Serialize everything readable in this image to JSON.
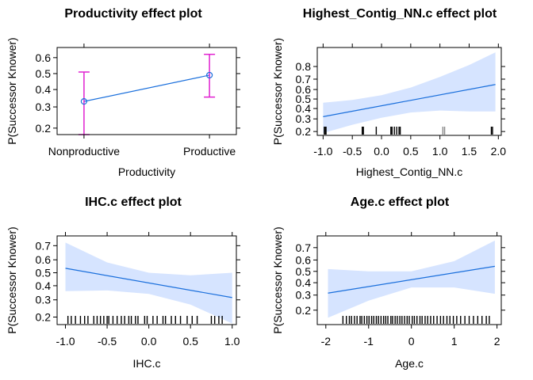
{
  "chart_data": [
    {
      "type": "line",
      "title": "Productivity effect plot",
      "xlabel": "Productivity",
      "ylabel": "P(Successor Knower)",
      "categories": [
        "Nonproductive",
        "Productive"
      ],
      "x_ticks": [
        "Nonproductive",
        "Productive"
      ],
      "y_ticks": [
        "0.2",
        "0.3",
        "0.4",
        "0.5",
        "0.6"
      ],
      "y_scale": "logit",
      "series": [
        {
          "values": [
            0.33,
            0.49
          ],
          "lower": [
            0.175,
            0.355
          ],
          "upper": [
            0.51,
            0.62
          ]
        }
      ],
      "line_color": "#1a6fdc",
      "errorbar_color": "#e020d0",
      "grid": false
    },
    {
      "type": "line",
      "title": "Highest_Contig_NN.c effect plot",
      "xlabel": "Highest_Contig_NN.c",
      "ylabel": "P(Successor Knower)",
      "xlim": [
        -1.1,
        2.05
      ],
      "x_ticks": [
        "-1.0",
        "-0.5",
        "0.0",
        "0.5",
        "1.0",
        "1.5",
        "2.0"
      ],
      "y_ticks": [
        "0.2",
        "0.3",
        "0.4",
        "0.5",
        "0.6",
        "0.7",
        "0.8"
      ],
      "y_scale": "logit",
      "line": {
        "x": [
          -1.0,
          1.95
        ],
        "y": [
          0.32,
          0.65
        ]
      },
      "band": {
        "x": [
          -1.0,
          -0.5,
          0.0,
          0.5,
          1.0,
          1.5,
          1.95
        ],
        "lower": [
          0.19,
          0.25,
          0.31,
          0.36,
          0.38,
          0.37,
          0.37
        ],
        "upper": [
          0.46,
          0.49,
          0.54,
          0.62,
          0.72,
          0.81,
          0.88
        ]
      },
      "rug": [
        -0.98,
        -0.96,
        -0.95,
        -0.33,
        -0.31,
        -0.09,
        0.16,
        0.18,
        0.22,
        0.26,
        0.3,
        0.32,
        1.05,
        1.08,
        1.88,
        1.9
      ],
      "rug_colors": {
        "1.05": "#888888",
        "1.08": "#888888"
      },
      "line_color": "#1a6fdc",
      "band_color": "#d6e4ff",
      "grid": false
    },
    {
      "type": "line",
      "title": "IHC.c effect plot",
      "xlabel": "IHC.c",
      "ylabel": "P(Successor Knower)",
      "xlim": [
        -1.1,
        1.05
      ],
      "x_ticks": [
        "-1.0",
        "-0.5",
        "0.0",
        "0.5",
        "1.0"
      ],
      "y_ticks": [
        "0.2",
        "0.3",
        "0.4",
        "0.5",
        "0.6",
        "0.7"
      ],
      "y_scale": "logit",
      "line": {
        "x": [
          -1.0,
          1.0
        ],
        "y": [
          0.535,
          0.315
        ]
      },
      "band": {
        "x": [
          -1.0,
          -0.5,
          0.0,
          0.5,
          1.0
        ],
        "lower": [
          0.36,
          0.365,
          0.34,
          0.27,
          0.17
        ],
        "upper": [
          0.72,
          0.58,
          0.5,
          0.48,
          0.5
        ]
      },
      "rug": [
        -0.97,
        -0.93,
        -0.88,
        -0.82,
        -0.77,
        -0.73,
        -0.66,
        -0.62,
        -0.58,
        -0.54,
        -0.5,
        -0.48,
        -0.43,
        -0.38,
        -0.33,
        -0.29,
        -0.24,
        -0.21,
        -0.16,
        -0.13,
        -0.05,
        -0.02,
        0.05,
        0.1,
        0.17,
        0.2,
        0.27,
        0.32,
        0.38,
        0.46,
        0.52,
        0.58,
        0.75,
        0.79,
        0.84,
        0.88
      ],
      "line_color": "#1a6fdc",
      "band_color": "#d6e4ff",
      "grid": false
    },
    {
      "type": "line",
      "title": "Age.c effect plot",
      "xlabel": "Age.c",
      "ylabel": "P(Successor Knower)",
      "xlim": [
        -2.2,
        2.1
      ],
      "x_ticks": [
        "-2",
        "-1",
        "0",
        "1",
        "2"
      ],
      "y_ticks": [
        "0.2",
        "0.3",
        "0.4",
        "0.5",
        "0.6",
        "0.7"
      ],
      "y_scale": "logit",
      "line": {
        "x": [
          -1.95,
          1.95
        ],
        "y": [
          0.315,
          0.545
        ]
      },
      "band": {
        "x": [
          -1.95,
          -1.0,
          0.0,
          1.0,
          1.95
        ],
        "lower": [
          0.16,
          0.26,
          0.36,
          0.36,
          0.31
        ],
        "upper": [
          0.52,
          0.5,
          0.5,
          0.59,
          0.75
        ]
      },
      "rug": [
        -1.6,
        -1.52,
        -1.45,
        -1.4,
        -1.33,
        -1.27,
        -1.2,
        -1.16,
        -1.1,
        -1.04,
        -0.99,
        -0.93,
        -0.88,
        -0.82,
        -0.77,
        -0.71,
        -0.65,
        -0.6,
        -0.55,
        -0.48,
        -0.44,
        -0.38,
        -0.33,
        -0.27,
        -0.22,
        -0.16,
        -0.1,
        -0.05,
        0.02,
        0.07,
        0.13,
        0.2,
        0.25,
        0.32,
        0.38,
        0.45,
        0.52,
        0.6,
        0.68,
        0.75,
        0.83,
        0.9,
        0.98,
        1.06,
        1.15,
        1.25,
        1.35,
        1.45,
        1.55,
        1.65,
        1.75,
        1.82
      ],
      "line_color": "#1a6fdc",
      "band_color": "#d6e4ff",
      "grid": false
    }
  ]
}
